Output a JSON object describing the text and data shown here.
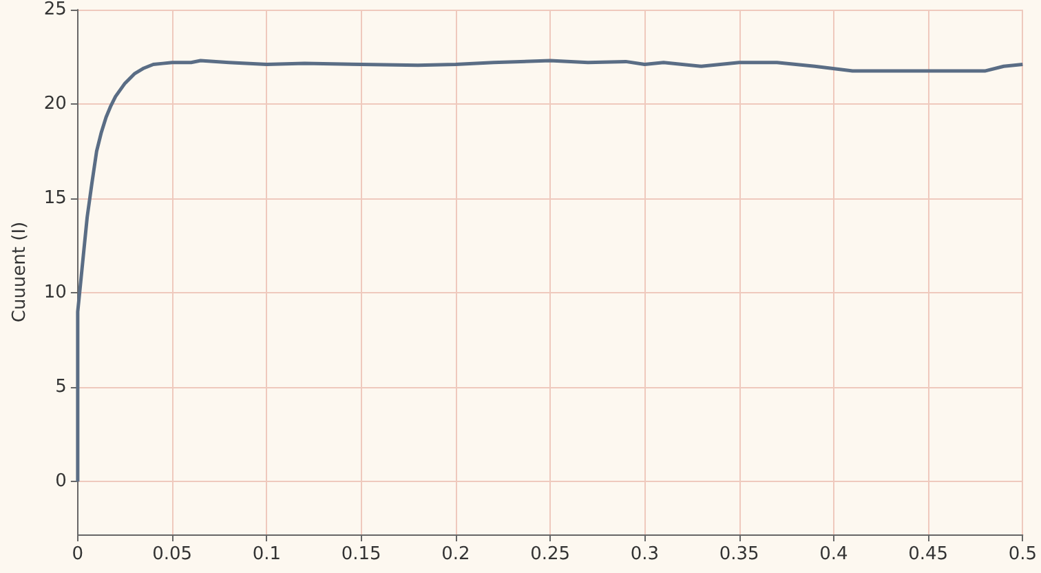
{
  "chart_data": {
    "type": "line",
    "ylabel": "Cuuuent (I)",
    "x": [
      0,
      0,
      0.001,
      0.003,
      0.005,
      0.0075,
      0.01,
      0.0125,
      0.015,
      0.0175,
      0.02,
      0.025,
      0.03,
      0.035,
      0.04,
      0.045,
      0.05,
      0.06,
      0.065,
      0.08,
      0.1,
      0.12,
      0.15,
      0.18,
      0.2,
      0.22,
      0.25,
      0.27,
      0.29,
      0.3,
      0.31,
      0.33,
      0.35,
      0.37,
      0.39,
      0.41,
      0.45,
      0.48,
      0.49,
      0.5
    ],
    "series": [
      {
        "color": "#5a6d85",
        "values": [
          0,
          9,
          10,
          12,
          14,
          15.8,
          17.5,
          18.5,
          19.3,
          19.9,
          20.4,
          21.1,
          21.6,
          21.9,
          22.1,
          22.15,
          22.2,
          22.2,
          22.3,
          22.2,
          22.1,
          22.15,
          22.1,
          22.05,
          22.1,
          22.2,
          22.3,
          22.2,
          22.25,
          22.1,
          22.2,
          22.0,
          22.2,
          22.2,
          22.0,
          21.75,
          21.75,
          21.75,
          22.0,
          22.1
        ]
      }
    ],
    "xlim": [
      0,
      0.5
    ],
    "xticks": [
      0,
      0.05,
      0.1,
      0.15,
      0.2,
      0.25,
      0.3,
      0.35,
      0.4,
      0.45,
      0.5
    ],
    "ylim": [
      -2.8,
      25
    ],
    "yticks": [
      0,
      5,
      10,
      15,
      20,
      25
    ],
    "grid": true,
    "marker": "none",
    "line_style": "solid"
  }
}
